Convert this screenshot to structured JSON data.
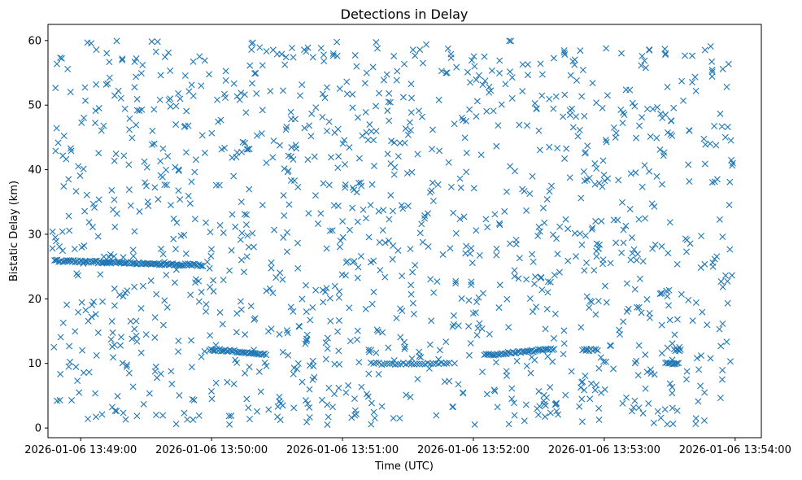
{
  "chart_data": {
    "type": "scatter",
    "title": "Detections in Delay",
    "xlabel": "Time (UTC)",
    "ylabel": "Bistatic Delay (km)",
    "x_unit": "time",
    "x_ticks": [
      "2026-01-06 13:49:00",
      "2026-01-06 13:50:00",
      "2026-01-06 13:51:00",
      "2026-01-06 13:52:00",
      "2026-01-06 13:53:00",
      "2026-01-06 13:54:00"
    ],
    "y_ticks": [
      "0",
      "10",
      "20",
      "30",
      "40",
      "50",
      "60"
    ],
    "xlim": [
      "2026-01-06 13:48:45",
      "2026-01-06 13:54:12"
    ],
    "ylim": [
      -1.5,
      62.5
    ],
    "marker": "x",
    "color": "#1f77b4",
    "grid": false,
    "x_start": "2026-01-06 13:48:47",
    "x_end": "2026-01-06 13:53:59",
    "tracks": [
      {
        "start": "2026-01-06 13:48:48",
        "end": "2026-01-06 13:49:56",
        "y_start": 25.9,
        "y_end": 25.2,
        "count": 110
      },
      {
        "start": "2026-01-06 13:49:59",
        "end": "2026-01-06 13:50:25",
        "y_start": 12.2,
        "y_end": 11.4,
        "count": 40
      },
      {
        "start": "2026-01-06 13:51:13",
        "end": "2026-01-06 13:51:49",
        "y_start": 10.0,
        "y_end": 10.0,
        "count": 30
      },
      {
        "start": "2026-01-06 13:52:05",
        "end": "2026-01-06 13:52:37",
        "y_start": 11.3,
        "y_end": 12.2,
        "count": 45
      },
      {
        "start": "2026-01-06 13:52:50",
        "end": "2026-01-06 13:52:57",
        "y_start": 12.1,
        "y_end": 12.1,
        "count": 10
      },
      {
        "start": "2026-01-06 13:53:28",
        "end": "2026-01-06 13:53:34",
        "y_start": 10.0,
        "y_end": 10.0,
        "count": 10
      },
      {
        "start": "2026-01-06 13:53:32",
        "end": "2026-01-06 13:53:35",
        "y_start": 12.1,
        "y_end": 12.1,
        "count": 6
      }
    ],
    "noise_points": 1300,
    "noise_y_range": [
      0.5,
      60
    ]
  }
}
